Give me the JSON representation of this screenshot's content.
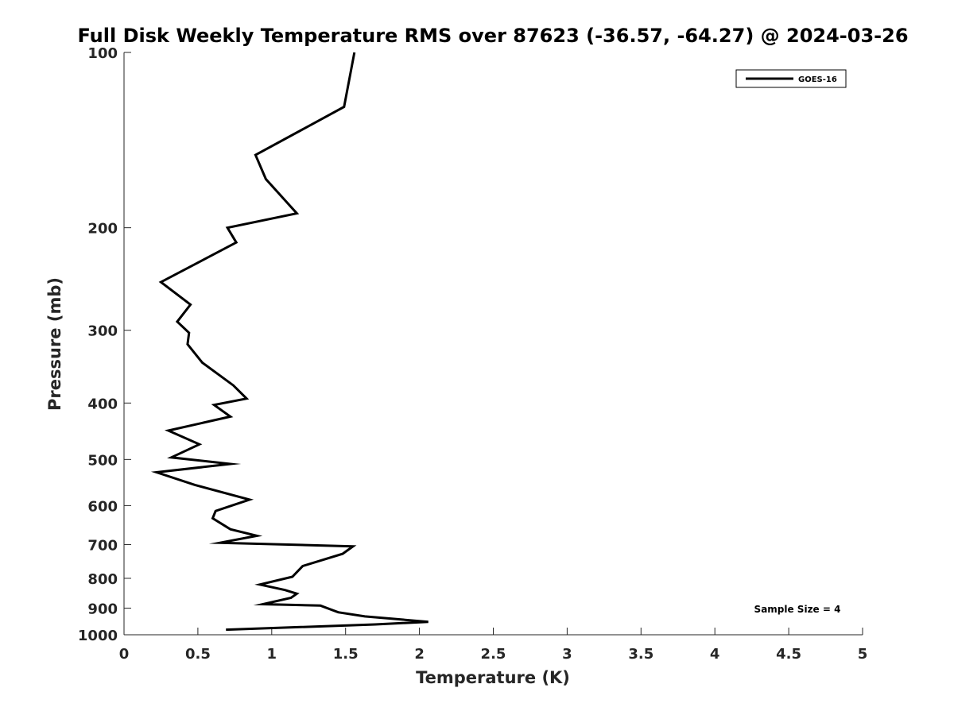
{
  "chart_data": {
    "type": "line",
    "title": "Full Disk Weekly Temperature RMS over 87623 (-36.57, -64.27) @ 2024-03-26",
    "xlabel": "Temperature (K)",
    "ylabel": "Pressure (mb)",
    "xlim": [
      0,
      5
    ],
    "ylim": [
      100,
      1000
    ],
    "y_scale": "log",
    "y_reversed": true,
    "grid": false,
    "legend_position": "top-right",
    "x_ticks": [
      "0",
      "0.5",
      "1",
      "1.5",
      "2",
      "2.5",
      "3",
      "3.5",
      "4",
      "4.5",
      "5"
    ],
    "y_ticks": [
      "100",
      "200",
      "300",
      "400",
      "500",
      "600",
      "700",
      "800",
      "900",
      "1000"
    ],
    "annotation": "Sample Size = 4",
    "series": [
      {
        "name": "GOES-16",
        "color": "#000000",
        "x": [
          1.56,
          1.49,
          0.89,
          0.96,
          1.17,
          0.7,
          0.76,
          0.25,
          0.45,
          0.36,
          0.44,
          0.43,
          0.53,
          0.74,
          0.83,
          0.61,
          0.72,
          0.3,
          0.51,
          0.32,
          0.72,
          0.22,
          0.48,
          0.85,
          0.62,
          0.6,
          0.72,
          0.9,
          0.65,
          1.55,
          1.48,
          1.21,
          1.14,
          0.92,
          1.09,
          1.17,
          1.13,
          0.94,
          1.33,
          1.45,
          1.63,
          2.06,
          1.7,
          0.69
        ],
        "y": [
          100,
          124,
          150,
          165,
          189,
          200,
          212,
          248,
          271,
          290,
          303,
          317,
          341,
          373,
          393,
          403,
          422,
          446,
          471,
          496,
          509,
          526,
          553,
          586,
          613,
          631,
          659,
          676,
          695,
          705,
          726,
          762,
          795,
          820,
          838,
          850,
          864,
          886,
          891,
          915,
          930,
          950,
          960,
          980
        ]
      }
    ]
  }
}
